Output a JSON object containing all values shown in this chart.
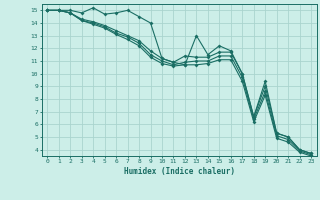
{
  "xlabel": "Humidex (Indice chaleur)",
  "bg_color": "#cceee8",
  "grid_color": "#aad4ce",
  "line_color": "#1a6e64",
  "xlim": [
    -0.5,
    23.5
  ],
  "ylim": [
    3.5,
    15.5
  ],
  "xticks": [
    0,
    1,
    2,
    3,
    4,
    5,
    6,
    7,
    8,
    9,
    10,
    11,
    12,
    13,
    14,
    15,
    16,
    17,
    18,
    19,
    20,
    21,
    22,
    23
  ],
  "yticks": [
    4,
    5,
    6,
    7,
    8,
    9,
    10,
    11,
    12,
    13,
    14,
    15
  ],
  "line1_x": [
    0,
    1,
    2,
    3,
    4,
    5,
    6,
    7,
    8,
    9,
    10,
    11,
    12,
    13,
    14,
    15,
    16,
    17,
    18,
    19,
    20,
    21,
    22,
    23
  ],
  "line1_y": [
    15,
    15,
    15,
    14.8,
    15.2,
    14.7,
    14.8,
    15.0,
    14.5,
    14.0,
    11.2,
    10.9,
    10.7,
    13.0,
    11.5,
    12.2,
    11.8,
    10.0,
    6.6,
    9.4,
    5.3,
    5.0,
    4.0,
    3.7
  ],
  "line2_x": [
    0,
    1,
    2,
    3,
    4,
    5,
    6,
    7,
    8,
    9,
    10,
    11,
    12,
    13,
    14,
    15,
    16,
    17,
    18,
    19,
    20,
    21,
    22,
    23
  ],
  "line2_y": [
    15,
    15,
    14.8,
    14.3,
    14.1,
    13.8,
    13.4,
    13.0,
    12.6,
    11.8,
    11.2,
    10.9,
    11.4,
    11.3,
    11.3,
    11.7,
    11.7,
    10.0,
    6.6,
    9.0,
    5.3,
    5.0,
    4.0,
    3.7
  ],
  "line3_x": [
    0,
    1,
    2,
    3,
    4,
    5,
    6,
    7,
    8,
    9,
    10,
    11,
    12,
    13,
    14,
    15,
    16,
    17,
    18,
    19,
    20,
    21,
    22,
    23
  ],
  "line3_y": [
    15,
    15,
    14.8,
    14.2,
    14.0,
    13.7,
    13.2,
    12.9,
    12.4,
    11.5,
    11.0,
    10.7,
    10.9,
    11.0,
    11.0,
    11.4,
    11.4,
    9.7,
    6.4,
    8.6,
    5.1,
    4.8,
    3.9,
    3.6
  ],
  "line4_x": [
    0,
    1,
    2,
    3,
    4,
    5,
    6,
    7,
    8,
    9,
    10,
    11,
    12,
    13,
    14,
    15,
    16,
    17,
    18,
    19,
    20,
    21,
    22,
    23
  ],
  "line4_y": [
    15,
    15,
    14.8,
    14.2,
    13.9,
    13.6,
    13.1,
    12.7,
    12.2,
    11.3,
    10.8,
    10.6,
    10.7,
    10.7,
    10.8,
    11.1,
    11.1,
    9.4,
    6.2,
    8.3,
    4.9,
    4.6,
    3.8,
    3.5
  ]
}
